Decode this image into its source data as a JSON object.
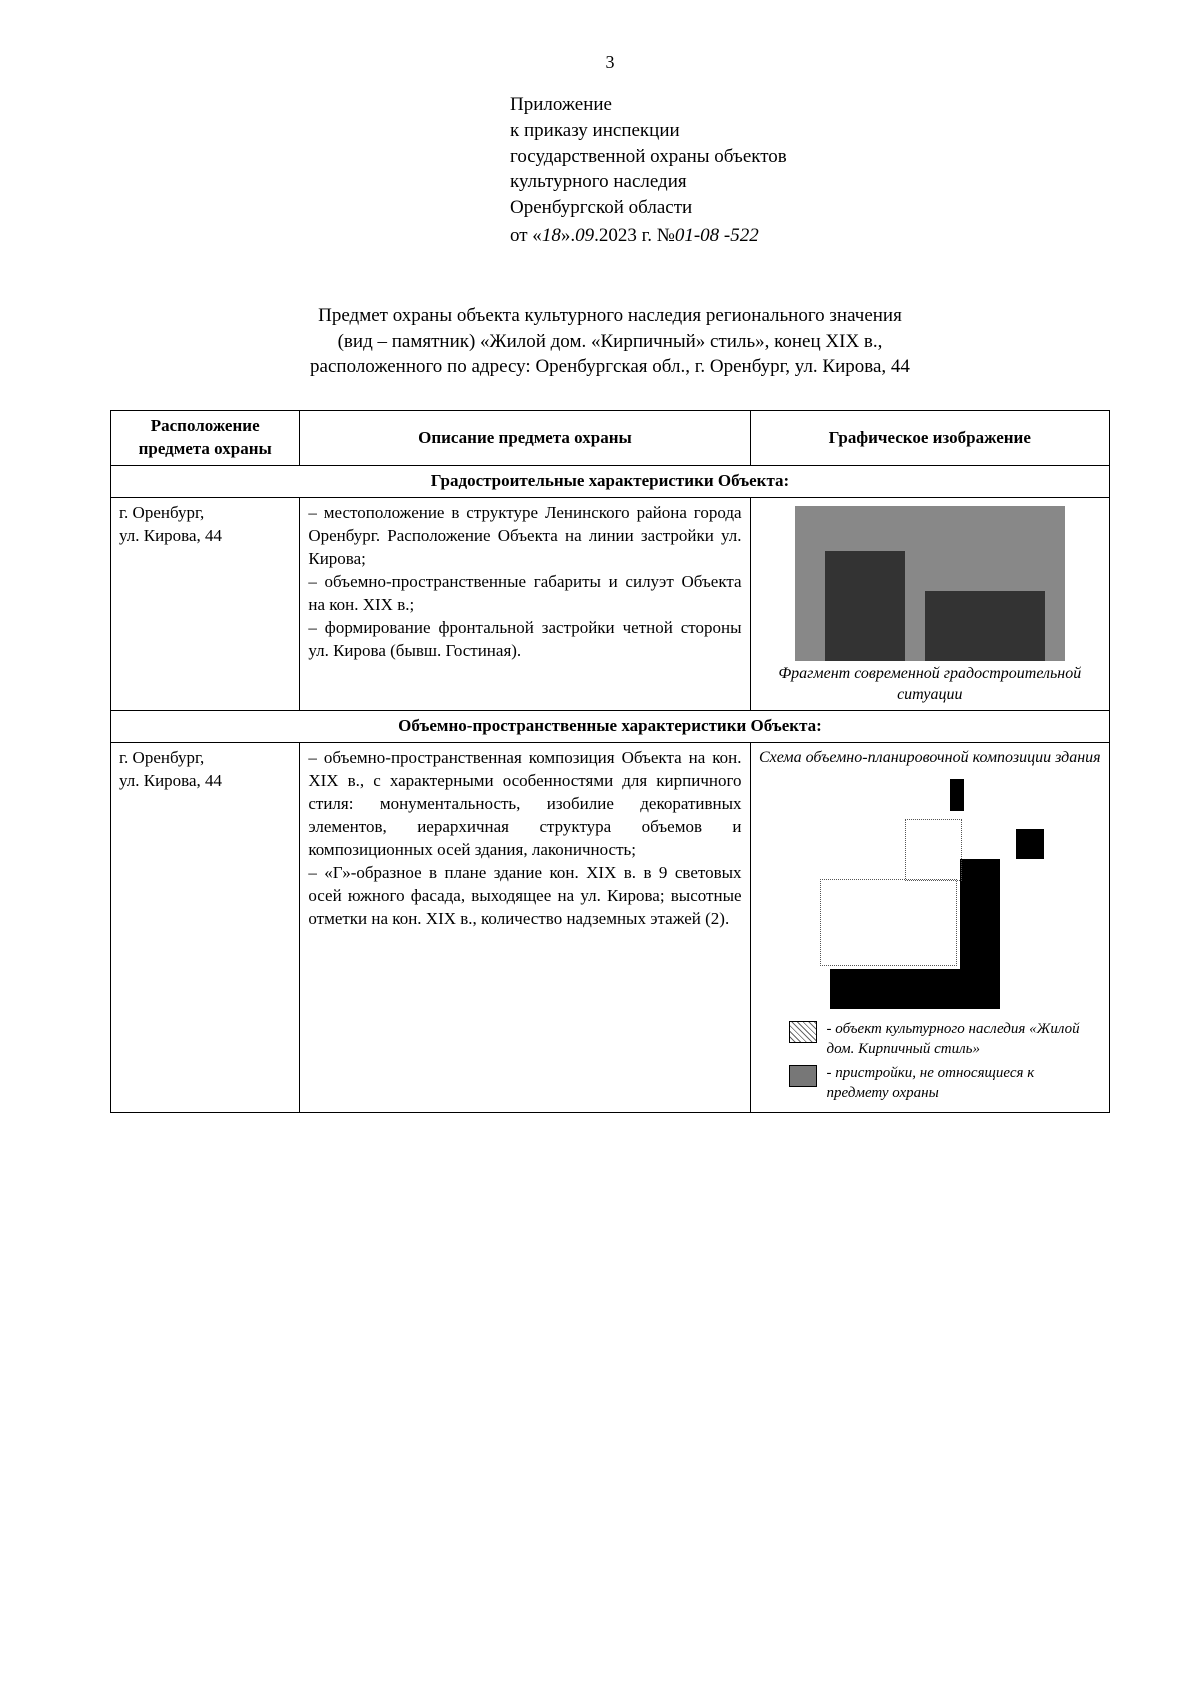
{
  "page_number": "3",
  "appendix": {
    "line1": "Приложение",
    "line2": "к приказу инспекции",
    "line3": "государственной охраны объектов",
    "line4": "культурного наследия",
    "line5": "Оренбургской области",
    "order_prefix": "от «",
    "order_day": "18",
    "order_mid": "».",
    "order_month": "09",
    "order_year": ".2023 г. №",
    "order_number": "01-08 -522"
  },
  "title": {
    "l1": "Предмет охраны объекта культурного наследия регионального значения",
    "l2": "(вид – памятник) «Жилой дом. «Кирпичный» стиль», конец XIX в.,",
    "l3": "расположенного по адресу: Оренбургская обл., г. Оренбург, ул. Кирова, 44"
  },
  "table": {
    "headers": {
      "c1": "Расположение предмета охраны",
      "c2": "Описание предмета охраны",
      "c3": "Графическое изображение"
    },
    "section1": "Градостроительные характеристики Объекта:",
    "row1": {
      "loc_l1": "г. Оренбург,",
      "loc_l2": "ул. Кирова, 44",
      "desc": "– местоположение в структуре Ленинского района города Оренбург. Расположение Объекта на линии застройки ул. Кирова;\n– объемно-пространственные габариты и силуэт Объекта на кон. XIX в.;\n– формирование фронтальной застройки четной стороны ул. Кирова (бывш. Гостиная).",
      "caption": "Фрагмент современной градостроительной ситуации"
    },
    "section2": "Объемно-пространственные характеристики Объекта:",
    "row2": {
      "loc_l1": "г. Оренбург,",
      "loc_l2": "ул. Кирова, 44",
      "desc": "– объемно-пространственная композиция Объекта на кон. XIX в., с характерными особенностями для кирпичного стиля: монументальность, изобилие декоративных элементов, иерархичная структура объемов и композиционных осей здания, лаконичность;\n– «Г»-образное в плане здание кон. XIX в. в 9 световых осей южного фасада, выходящее на ул. Кирова; высотные отметки на кон. XIX в., количество надземных этажей (2).",
      "caption": "Схема объемно-планировочной композиции здания",
      "legend1": "- объект культурного наследия «Жилой дом. Кирпичный стиль»",
      "legend2": "- пристройки, не относящиеся к предмету охраны"
    }
  }
}
